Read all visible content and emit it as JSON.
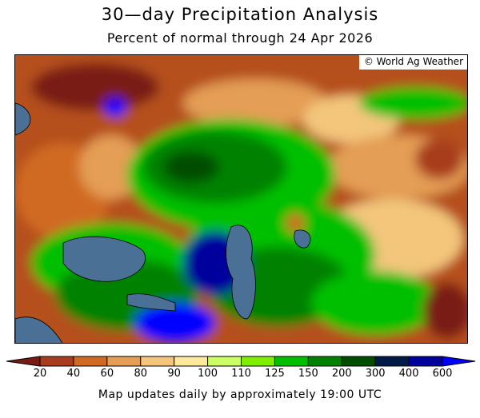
{
  "title": "30—day Precipitation Analysis",
  "subtitle": "Percent of normal through 24 Apr 2026",
  "credit": "© World Ag Weather",
  "legend": {
    "under_color": "#7a1a14",
    "over_color": "#0000ff",
    "bins": [
      {
        "color": "#a83c1e"
      },
      {
        "color": "#d06a22"
      },
      {
        "color": "#e49e55"
      },
      {
        "color": "#f3c67c"
      },
      {
        "color": "#fde89c"
      },
      {
        "color": "#ccff66"
      },
      {
        "color": "#80ee00"
      },
      {
        "color": "#00bf00"
      },
      {
        "color": "#008200"
      },
      {
        "color": "#004d00"
      },
      {
        "color": "#001a48"
      },
      {
        "color": "#00009c"
      }
    ],
    "ticks": [
      "20",
      "40",
      "60",
      "80",
      "90",
      "100",
      "110",
      "125",
      "150",
      "200",
      "300",
      "400",
      "600"
    ]
  },
  "footer": "Map updates daily by approximately 19:00 UTC"
}
